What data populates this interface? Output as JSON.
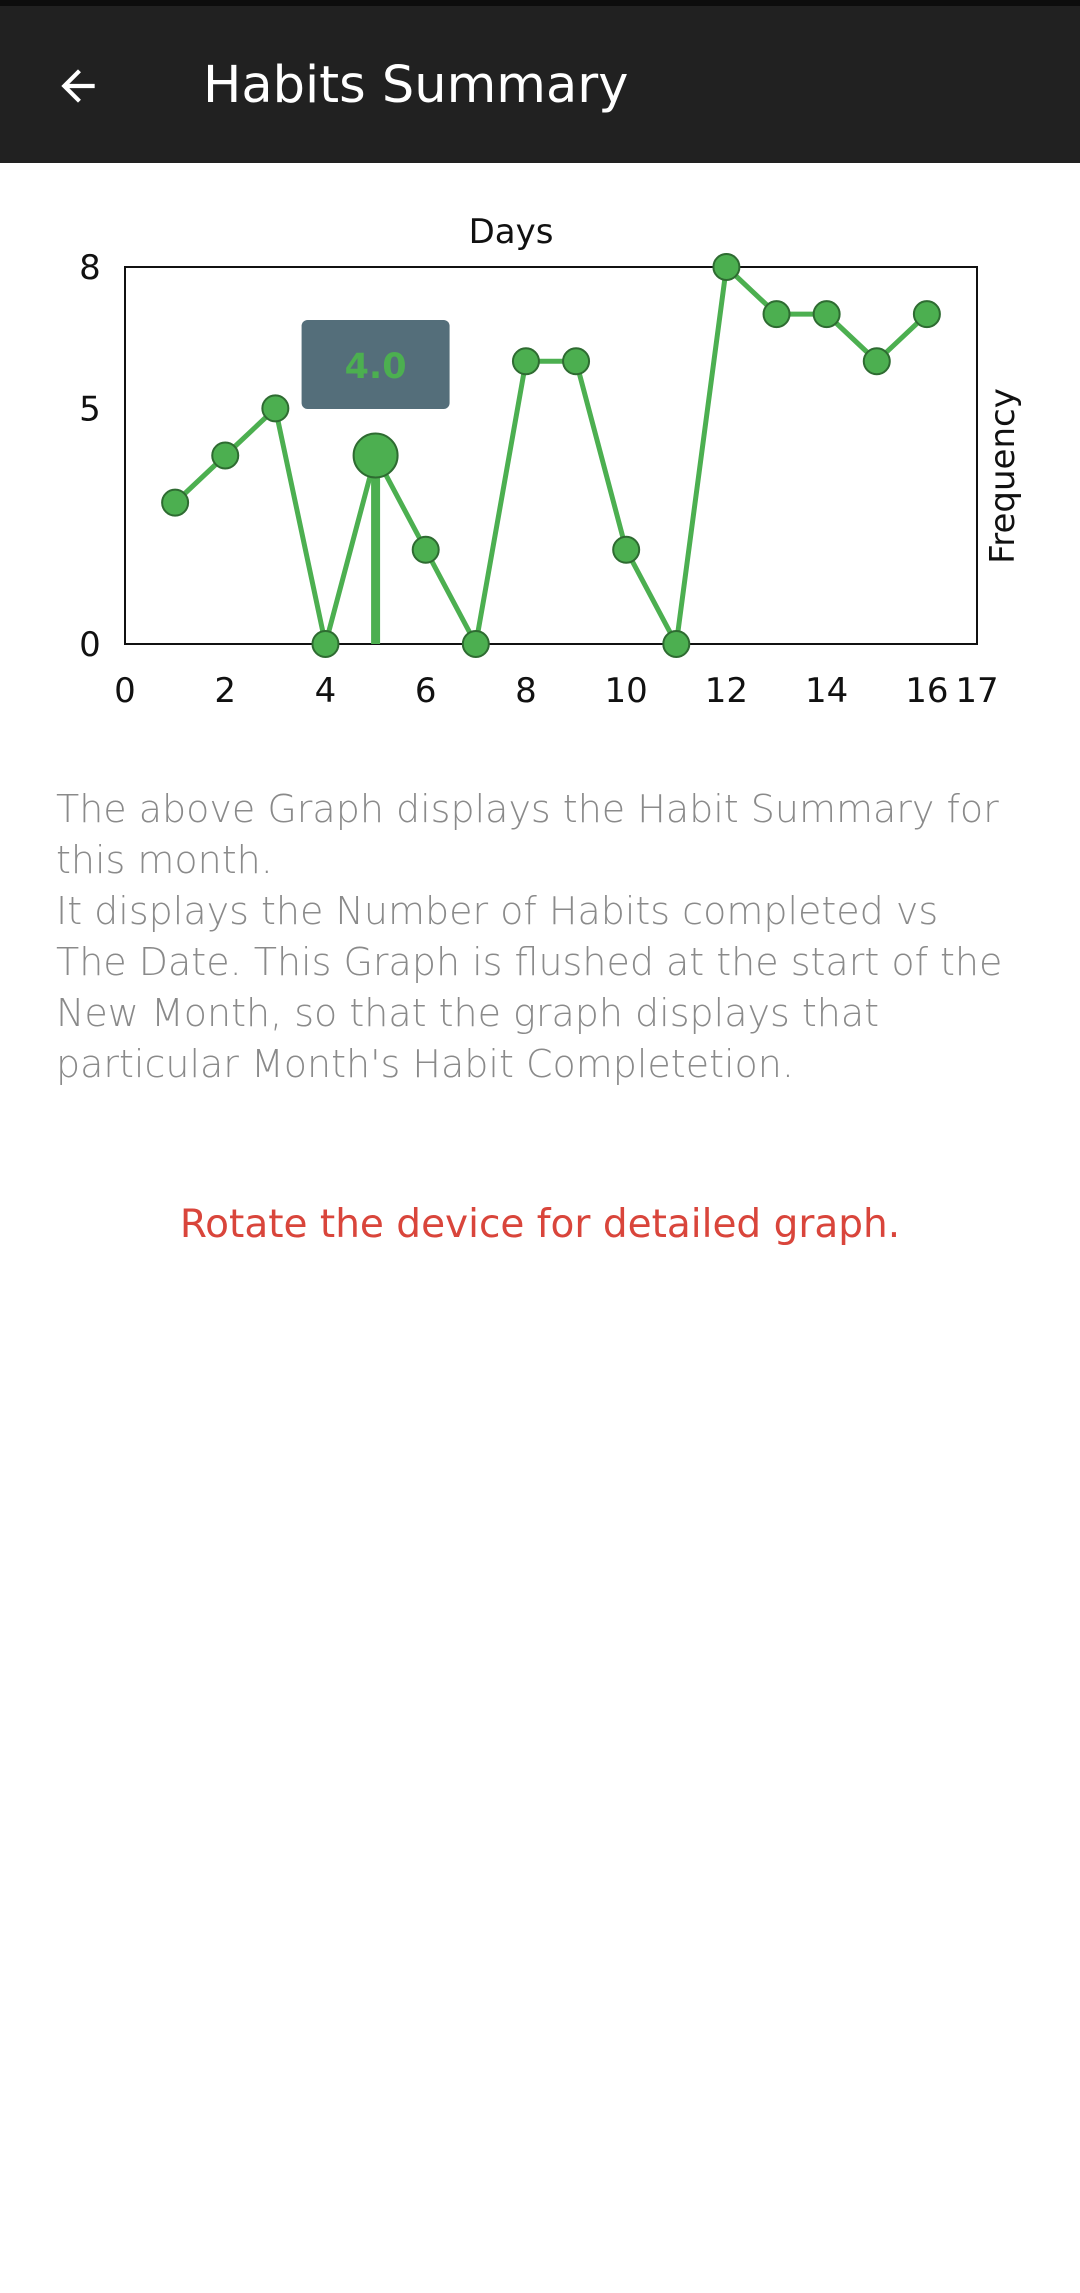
{
  "app_bar": {
    "title": "Habits Summary",
    "back_icon": "arrow-back-icon"
  },
  "colors": {
    "app_bar": "#212121",
    "line": "#4caf50",
    "marker_stroke": "#2e6b31",
    "tooltip_bg": "#546e7a",
    "hint": "#d9453b",
    "description": "#8a8a8a"
  },
  "chart_data": {
    "type": "line",
    "title": "Days",
    "xlabel": "",
    "ylabel": "Frequency",
    "ylabel_position": "right",
    "xlim": [
      0,
      17
    ],
    "ylim": [
      0,
      8
    ],
    "x_ticks": [
      "0",
      "2",
      "4",
      "6",
      "8",
      "10",
      "12",
      "14",
      "16",
      "17"
    ],
    "y_ticks": [
      "0",
      "5",
      "8"
    ],
    "grid": false,
    "series": [
      {
        "x": [
          1,
          2,
          3,
          4,
          5,
          6,
          7,
          8,
          9,
          10,
          11,
          12,
          13,
          14,
          15,
          16
        ],
        "y": [
          3,
          4,
          5,
          0,
          4,
          2,
          0,
          6,
          6,
          2,
          0,
          8,
          7,
          7,
          6,
          7
        ]
      }
    ],
    "highlight": {
      "x": 5,
      "y": 4,
      "label": "4.0"
    }
  },
  "description": {
    "line1": "The above Graph displays the Habit Summary for this month.",
    "line2": "It displays the Number of Habits completed vs The Date. This Graph is flushed at the start of the New Month, so that the graph displays that particular Month's Habit Completetion."
  },
  "hint": {
    "text": "Rotate the device for detailed graph."
  }
}
